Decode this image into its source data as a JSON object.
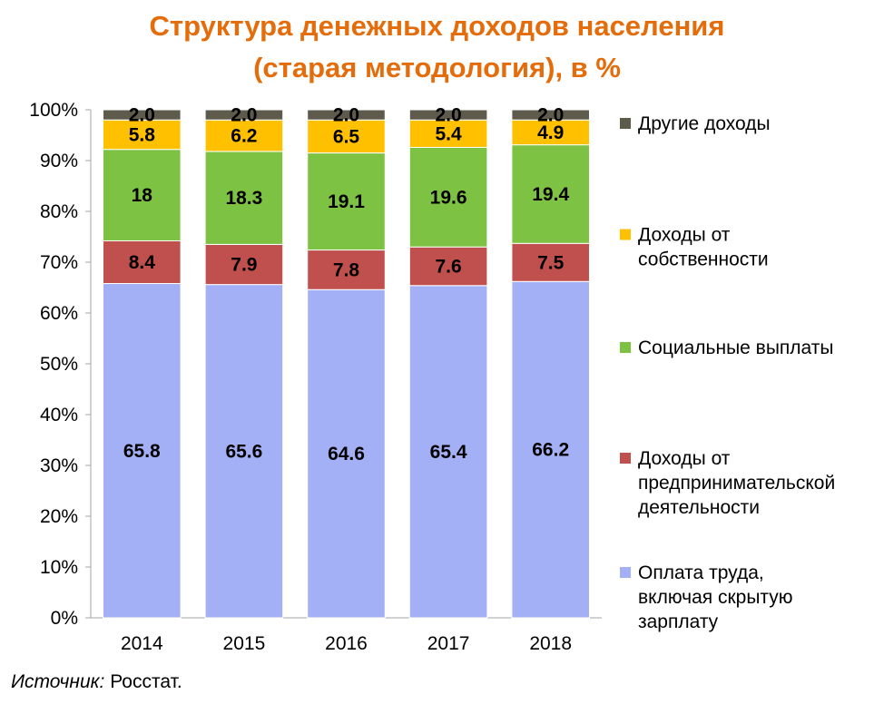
{
  "title": {
    "line1": "Структура денежных доходов населения",
    "line2": "(старая методология), в %"
  },
  "source": {
    "label": "Источник:",
    "text": " Росстат."
  },
  "chart_data": {
    "type": "bar",
    "stacked": true,
    "categories": [
      "2014",
      "2015",
      "2016",
      "2017",
      "2018"
    ],
    "y_ticks": [
      "0%",
      "10%",
      "20%",
      "30%",
      "40%",
      "50%",
      "60%",
      "70%",
      "80%",
      "90%",
      "100%"
    ],
    "ylim": [
      0,
      100
    ],
    "grid": false,
    "legend_position": "right",
    "series": [
      {
        "name": "Оплата труда, включая скрытую зарплату",
        "legend_lines": [
          "Оплата труда,",
          "включая скрытую",
          "зарплату"
        ],
        "color": "#A4B0F5",
        "values": [
          65.8,
          65.6,
          64.6,
          65.4,
          66.2
        ],
        "labels": [
          "65.8",
          "65.6",
          "64.6",
          "65.4",
          "66.2"
        ]
      },
      {
        "name": "Доходы от предпринимательской деятельности",
        "legend_lines": [
          "Доходы от",
          "предпринимательской",
          "деятельности"
        ],
        "color": "#C0504D",
        "values": [
          8.4,
          7.9,
          7.8,
          7.6,
          7.5
        ],
        "labels": [
          "8.4",
          "7.9",
          "7.8",
          "7.6",
          "7.5"
        ]
      },
      {
        "name": "Социальные выплаты",
        "legend_lines": [
          "Социальные выплаты"
        ],
        "color": "#7DC242",
        "values": [
          18,
          18.3,
          19.1,
          19.6,
          19.4
        ],
        "labels": [
          "18",
          "18.3",
          "19.1",
          "19.6",
          "19.4"
        ]
      },
      {
        "name": "Доходы от собственности",
        "legend_lines": [
          "Доходы от",
          "собственности"
        ],
        "color": "#FFC000",
        "values": [
          5.8,
          6.2,
          6.5,
          5.4,
          4.9
        ],
        "labels": [
          "5.8",
          "6.2",
          "6.5",
          "5.4",
          "4.9"
        ]
      },
      {
        "name": "Другие доходы",
        "legend_lines": [
          "Другие доходы"
        ],
        "color": "#5F5B4C",
        "values": [
          2.0,
          2.0,
          2.0,
          2.0,
          2.0
        ],
        "labels": [
          "2.0",
          "2.0",
          "2.0",
          "2.0",
          "2.0"
        ]
      }
    ]
  }
}
